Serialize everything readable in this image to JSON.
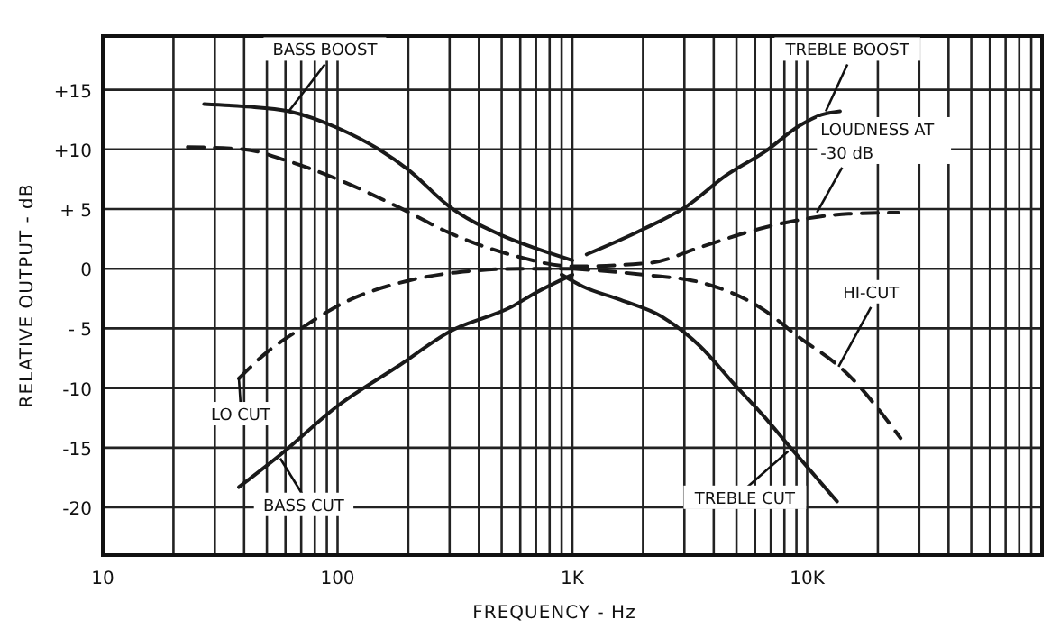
{
  "chart_data": {
    "type": "line",
    "xlabel": "FREQUENCY - Hz",
    "ylabel": "RELATIVE OUTPUT - dB",
    "log": "x",
    "grid": true,
    "marker": "none",
    "xlim": [
      10,
      100000
    ],
    "ylim": [
      -24,
      19.5
    ],
    "xticks": [
      {
        "value": 10,
        "label": "10"
      },
      {
        "value": 20,
        "label": null
      },
      {
        "value": 30,
        "label": null
      },
      {
        "value": 40,
        "label": null
      },
      {
        "value": 50,
        "label": null
      },
      {
        "value": 60,
        "label": null
      },
      {
        "value": 70,
        "label": null
      },
      {
        "value": 80,
        "label": null
      },
      {
        "value": 90,
        "label": null
      },
      {
        "value": 100,
        "label": "100"
      },
      {
        "value": 200,
        "label": null
      },
      {
        "value": 300,
        "label": null
      },
      {
        "value": 400,
        "label": null
      },
      {
        "value": 500,
        "label": null
      },
      {
        "value": 600,
        "label": null
      },
      {
        "value": 700,
        "label": null
      },
      {
        "value": 800,
        "label": null
      },
      {
        "value": 900,
        "label": null
      },
      {
        "value": 1000,
        "label": "1K"
      },
      {
        "value": 2000,
        "label": null
      },
      {
        "value": 3000,
        "label": null
      },
      {
        "value": 4000,
        "label": null
      },
      {
        "value": 5000,
        "label": null
      },
      {
        "value": 6000,
        "label": null
      },
      {
        "value": 7000,
        "label": null
      },
      {
        "value": 8000,
        "label": null
      },
      {
        "value": 9000,
        "label": null
      },
      {
        "value": 10000,
        "label": "10K"
      },
      {
        "value": 20000,
        "label": null
      },
      {
        "value": 30000,
        "label": null
      },
      {
        "value": 40000,
        "label": null
      },
      {
        "value": 50000,
        "label": null
      },
      {
        "value": 60000,
        "label": null
      },
      {
        "value": 70000,
        "label": null
      },
      {
        "value": 80000,
        "label": null
      },
      {
        "value": 90000,
        "label": null
      }
    ],
    "yticks": [
      {
        "value": 15,
        "label": "+15"
      },
      {
        "value": 10,
        "label": "+10"
      },
      {
        "value": 5,
        "label": "+ 5"
      },
      0,
      {
        "value": -5,
        "label": "- 5"
      },
      {
        "value": -10,
        "label": "-10"
      },
      {
        "value": -15,
        "label": "-15"
      },
      {
        "value": -20,
        "label": "-20"
      }
    ],
    "series": [
      {
        "color": "#1a1a1a",
        "line_style": "solid",
        "x": [
          27,
          40,
          62,
          100,
          150,
          200,
          300,
          500,
          700,
          1000
        ],
        "values": [
          13.8,
          13.6,
          13.2,
          11.8,
          10,
          8.3,
          5.2,
          2.8,
          1.7,
          0.7
        ]
      },
      {
        "color": "#1a1a1a",
        "line_style": "dashed",
        "x": [
          23,
          40,
          62,
          100,
          180,
          300,
          590,
          1000,
          2150,
          3500,
          5900,
          9300,
          15000,
          24500
        ],
        "values": [
          10.2,
          10,
          9,
          7.5,
          5.2,
          3,
          1,
          0.2,
          0.5,
          1.8,
          3.2,
          4.1,
          4.6,
          4.7
        ]
      },
      {
        "color": "#1a1a1a",
        "line_style": "solid",
        "x": [
          1150,
          2000,
          3050,
          4500,
          6600,
          9300,
          11500,
          13800
        ],
        "values": [
          1.2,
          3.3,
          5.2,
          7.8,
          9.8,
          12.0,
          12.9,
          13.2
        ]
      },
      {
        "color": "#1a1a1a",
        "line_style": "dashed",
        "x": [
          38,
          50,
          70,
          105,
          200,
          365,
          600,
          1000
        ],
        "values": [
          -9.2,
          -7,
          -5,
          -2.9,
          -1,
          -0.2,
          0,
          0
        ]
      },
      {
        "color": "#1a1a1a",
        "line_style": "solid",
        "x": [
          38,
          57,
          100,
          180,
          305,
          550,
          700,
          1000
        ],
        "values": [
          -18.3,
          -15.6,
          -11.5,
          -8.2,
          -5.2,
          -3.2,
          -2,
          -0.5
        ]
      },
      {
        "color": "#1a1a1a",
        "line_style": "solid",
        "x": [
          900,
          1110,
          1600,
          2400,
          3500,
          4900,
          6500,
          8500,
          13400
        ],
        "values": [
          -0.5,
          -1.5,
          -2.6,
          -4,
          -6.5,
          -9.7,
          -12.3,
          -15,
          -19.5
        ]
      },
      {
        "color": "#1a1a1a",
        "line_style": "dashed",
        "x": [
          1000,
          2000,
          3600,
          6600,
          8900,
          15000,
          25000
        ],
        "values": [
          0,
          -0.5,
          -1.2,
          -3.5,
          -5.5,
          -8.9,
          -14.2
        ]
      }
    ],
    "annotations": [
      {
        "text": "BASS BOOST",
        "x": 62,
        "y": 13.2
      },
      {
        "text": "TREBLE BOOST",
        "x": 12000,
        "y": 13.2
      },
      {
        "text": "LOUDNESS AT\n-30 dB",
        "x": 11000,
        "y": 4.7
      },
      {
        "text": "HI-CUT",
        "x": 13600,
        "y": -8.2
      },
      {
        "text": "LO CUT",
        "x": 38,
        "y": -9.2
      },
      {
        "text": "BASS CUT",
        "x": 57,
        "y": -15.9
      },
      {
        "text": "TREBLE CUT",
        "x": 8300,
        "y": -15.3
      }
    ]
  }
}
